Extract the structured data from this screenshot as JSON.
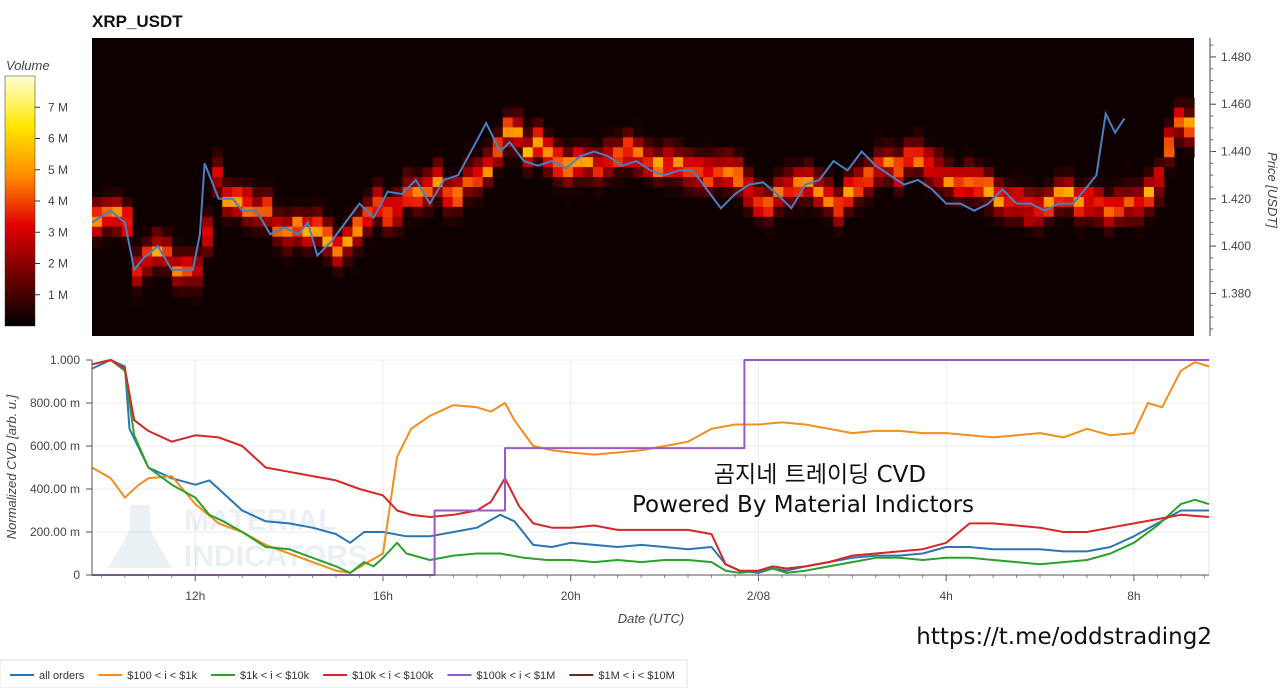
{
  "chart_data": [
    {
      "type": "heatmap",
      "title": "XRP_USDT",
      "colorbar": {
        "label": "Volume",
        "ticks": [
          "1 M",
          "2 M",
          "3 M",
          "4 M",
          "5 M",
          "6 M",
          "7 M"
        ],
        "range": [
          0,
          8000000
        ],
        "colormap": [
          "#000000",
          "#6e0000",
          "#e00000",
          "#ff8a00",
          "#ffe800",
          "#ffffd8"
        ]
      },
      "ylabel": "Price [USDT]",
      "ylim": [
        1.362,
        1.488
      ],
      "y_ticks": [
        "1.380",
        "1.400",
        "1.420",
        "1.440",
        "1.460",
        "1.480"
      ],
      "price_series": {
        "name": "Price",
        "color": "#4a7fc1",
        "x": [
          9.8,
          10.2,
          10.5,
          10.7,
          10.9,
          11.2,
          11.5,
          11.8,
          11.95,
          12.1,
          12.2,
          12.5,
          12.8,
          13.0,
          13.3,
          13.6,
          13.9,
          14.2,
          14.4,
          14.6,
          14.9,
          15.2,
          15.5,
          15.8,
          16.1,
          16.4,
          16.7,
          17.0,
          17.3,
          17.6,
          17.9,
          18.2,
          18.5,
          18.7,
          19.0,
          19.3,
          19.6,
          19.9,
          20.2,
          20.5,
          20.8,
          21.1,
          21.4,
          21.7,
          22.0,
          22.3,
          22.6,
          22.9,
          23.2,
          23.5,
          23.8,
          24.1,
          24.4,
          24.7,
          25.0,
          25.3,
          25.6,
          25.9,
          26.2,
          26.5,
          26.8,
          27.1,
          27.4,
          27.7,
          28.0,
          28.3,
          28.6,
          28.9,
          29.2,
          29.5,
          29.8,
          30.1,
          30.4,
          30.7,
          31.0,
          31.2,
          31.4,
          31.6,
          31.8
        ],
        "y": [
          1.41,
          1.415,
          1.41,
          1.39,
          1.395,
          1.4,
          1.39,
          1.39,
          1.39,
          1.405,
          1.435,
          1.42,
          1.42,
          1.415,
          1.415,
          1.405,
          1.408,
          1.405,
          1.41,
          1.396,
          1.402,
          1.41,
          1.418,
          1.412,
          1.423,
          1.422,
          1.428,
          1.418,
          1.428,
          1.43,
          1.441,
          1.452,
          1.44,
          1.444,
          1.436,
          1.434,
          1.436,
          1.433,
          1.438,
          1.44,
          1.438,
          1.434,
          1.436,
          1.432,
          1.43,
          1.432,
          1.432,
          1.424,
          1.416,
          1.422,
          1.426,
          1.427,
          1.422,
          1.416,
          1.426,
          1.428,
          1.436,
          1.432,
          1.44,
          1.434,
          1.43,
          1.426,
          1.428,
          1.424,
          1.418,
          1.418,
          1.415,
          1.418,
          1.424,
          1.418,
          1.418,
          1.415,
          1.418,
          1.418,
          1.425,
          1.43,
          1.456,
          1.448,
          1.454
        ]
      }
    },
    {
      "type": "line",
      "ylabel": "Normalized CVD [arb. u.]",
      "xlabel": "Date (UTC)",
      "xlim": [
        9.8,
        33.6
      ],
      "ylim": [
        0,
        1.0
      ],
      "x_ticks": [
        {
          "v": 12,
          "label": "12h"
        },
        {
          "v": 16,
          "label": "16h"
        },
        {
          "v": 20,
          "label": "20h"
        },
        {
          "v": 24,
          "label": "2/08"
        },
        {
          "v": 28,
          "label": "4h"
        },
        {
          "v": 32,
          "label": "8h"
        }
      ],
      "y_ticks": [
        {
          "v": 0,
          "label": "0"
        },
        {
          "v": 0.2,
          "label": "200.00 m"
        },
        {
          "v": 0.4,
          "label": "400.00 m"
        },
        {
          "v": 0.6,
          "label": "600.00 m"
        },
        {
          "v": 0.8,
          "label": "800.00 m"
        },
        {
          "v": 1.0,
          "label": "1.000"
        }
      ],
      "series": [
        {
          "name": "all orders",
          "color": "#2c75b3",
          "x": [
            9.8,
            10.2,
            10.5,
            10.6,
            11.0,
            11.5,
            12.0,
            12.3,
            12.6,
            13.0,
            13.5,
            14.0,
            14.5,
            15.0,
            15.3,
            15.6,
            16.0,
            16.5,
            17.0,
            17.5,
            18.0,
            18.5,
            18.8,
            19.2,
            19.6,
            20.0,
            20.5,
            21.0,
            21.5,
            22.0,
            22.5,
            23.0,
            23.3,
            23.6,
            24.0,
            24.3,
            24.6,
            25.0,
            25.5,
            26.0,
            26.5,
            27.0,
            27.5,
            28.0,
            28.5,
            29.0,
            29.5,
            30.0,
            30.5,
            31.0,
            31.5,
            32.0,
            32.5,
            33.0,
            33.6
          ],
          "y": [
            0.96,
            1.0,
            0.97,
            0.68,
            0.5,
            0.45,
            0.42,
            0.44,
            0.38,
            0.3,
            0.25,
            0.24,
            0.22,
            0.19,
            0.15,
            0.2,
            0.2,
            0.18,
            0.18,
            0.2,
            0.22,
            0.28,
            0.25,
            0.14,
            0.13,
            0.15,
            0.14,
            0.13,
            0.14,
            0.13,
            0.12,
            0.13,
            0.05,
            0.02,
            0.01,
            0.03,
            0.02,
            0.04,
            0.06,
            0.08,
            0.09,
            0.09,
            0.1,
            0.13,
            0.13,
            0.12,
            0.12,
            0.12,
            0.11,
            0.11,
            0.13,
            0.18,
            0.24,
            0.3,
            0.3
          ]
        },
        {
          "name": "$100 < i < $1k",
          "color": "#f28e1e",
          "x": [
            9.8,
            10.2,
            10.5,
            10.8,
            11.0,
            11.5,
            12.0,
            12.5,
            13.0,
            13.5,
            14.0,
            14.5,
            15.0,
            15.3,
            15.6,
            16.0,
            16.3,
            16.6,
            17.0,
            17.5,
            18.0,
            18.3,
            18.6,
            18.8,
            19.2,
            19.6,
            20.0,
            20.5,
            21.0,
            21.5,
            22.0,
            22.5,
            23.0,
            23.5,
            24.0,
            24.5,
            25.0,
            25.5,
            26.0,
            26.5,
            27.0,
            27.5,
            28.0,
            28.5,
            29.0,
            29.5,
            30.0,
            30.5,
            31.0,
            31.5,
            32.0,
            32.3,
            32.6,
            33.0,
            33.3,
            33.6
          ],
          "y": [
            0.5,
            0.45,
            0.36,
            0.42,
            0.45,
            0.46,
            0.33,
            0.24,
            0.2,
            0.14,
            0.1,
            0.06,
            0.02,
            0.01,
            0.05,
            0.1,
            0.55,
            0.68,
            0.74,
            0.79,
            0.78,
            0.76,
            0.8,
            0.72,
            0.6,
            0.58,
            0.57,
            0.56,
            0.57,
            0.58,
            0.6,
            0.62,
            0.68,
            0.7,
            0.7,
            0.71,
            0.7,
            0.68,
            0.66,
            0.67,
            0.67,
            0.66,
            0.66,
            0.65,
            0.64,
            0.65,
            0.66,
            0.64,
            0.68,
            0.65,
            0.66,
            0.8,
            0.78,
            0.95,
            0.99,
            0.97
          ]
        },
        {
          "name": "$1k < i < $10k",
          "color": "#2ca02c",
          "x": [
            9.8,
            10.2,
            10.5,
            10.7,
            11.0,
            11.5,
            12.0,
            12.3,
            12.6,
            13.0,
            13.5,
            14.0,
            14.5,
            15.0,
            15.3,
            15.6,
            15.8,
            16.0,
            16.3,
            16.5,
            17.0,
            17.5,
            18.0,
            18.5,
            19.0,
            19.5,
            20.0,
            20.5,
            21.0,
            21.5,
            22.0,
            22.5,
            23.0,
            23.3,
            23.6,
            24.0,
            24.3,
            24.6,
            25.0,
            25.5,
            26.0,
            26.5,
            27.0,
            27.5,
            28.0,
            28.5,
            29.0,
            29.5,
            30.0,
            30.5,
            31.0,
            31.5,
            32.0,
            32.5,
            33.0,
            33.3,
            33.6
          ],
          "y": [
            0.98,
            1.0,
            0.95,
            0.65,
            0.5,
            0.42,
            0.36,
            0.28,
            0.25,
            0.2,
            0.13,
            0.12,
            0.08,
            0.04,
            0.01,
            0.06,
            0.04,
            0.08,
            0.15,
            0.1,
            0.07,
            0.09,
            0.1,
            0.1,
            0.08,
            0.07,
            0.07,
            0.06,
            0.07,
            0.06,
            0.07,
            0.07,
            0.06,
            0.02,
            0.01,
            0.02,
            0.03,
            0.01,
            0.02,
            0.04,
            0.06,
            0.08,
            0.08,
            0.07,
            0.08,
            0.08,
            0.07,
            0.06,
            0.05,
            0.06,
            0.07,
            0.1,
            0.15,
            0.23,
            0.33,
            0.35,
            0.33
          ]
        },
        {
          "name": "$10k < i < $100k",
          "color": "#d62728",
          "x": [
            9.8,
            10.2,
            10.5,
            10.7,
            11.0,
            11.5,
            12.0,
            12.5,
            13.0,
            13.5,
            14.0,
            14.5,
            15.0,
            15.5,
            16.0,
            16.3,
            16.6,
            17.0,
            17.5,
            18.0,
            18.3,
            18.6,
            18.9,
            19.2,
            19.6,
            20.0,
            20.5,
            21.0,
            21.5,
            22.0,
            22.5,
            23.0,
            23.3,
            23.6,
            24.0,
            24.3,
            24.6,
            25.0,
            25.5,
            26.0,
            26.5,
            27.0,
            27.5,
            28.0,
            28.5,
            29.0,
            29.5,
            30.0,
            30.5,
            31.0,
            31.5,
            32.0,
            32.5,
            33.0,
            33.6
          ],
          "y": [
            0.98,
            1.0,
            0.96,
            0.72,
            0.67,
            0.62,
            0.65,
            0.64,
            0.6,
            0.5,
            0.48,
            0.46,
            0.44,
            0.4,
            0.37,
            0.3,
            0.28,
            0.27,
            0.28,
            0.3,
            0.34,
            0.45,
            0.32,
            0.24,
            0.22,
            0.22,
            0.23,
            0.21,
            0.21,
            0.21,
            0.21,
            0.19,
            0.05,
            0.02,
            0.02,
            0.04,
            0.03,
            0.04,
            0.06,
            0.09,
            0.1,
            0.11,
            0.12,
            0.15,
            0.24,
            0.24,
            0.23,
            0.22,
            0.2,
            0.2,
            0.22,
            0.24,
            0.26,
            0.28,
            0.27
          ]
        },
        {
          "name": "$100k < i < $1M",
          "color": "#9b59c8",
          "x": [
            9.8,
            17.1,
            17.1,
            18.6,
            18.6,
            23.7,
            23.7,
            33.6
          ],
          "y": [
            0,
            0,
            0.3,
            0.3,
            0.59,
            0.59,
            1.0,
            1.0
          ]
        },
        {
          "name": "$1M < i < $10M",
          "color": "#6b2a2a",
          "x": [],
          "y": []
        }
      ]
    }
  ],
  "overlay": {
    "title_line1": "곰지네 트레이딩 CVD",
    "title_line2": "Powered By Material Indictors",
    "url": "https://t.me/oddstrading2",
    "watermark_line1": "MATERIAL",
    "watermark_line2": "INDICATORS"
  }
}
